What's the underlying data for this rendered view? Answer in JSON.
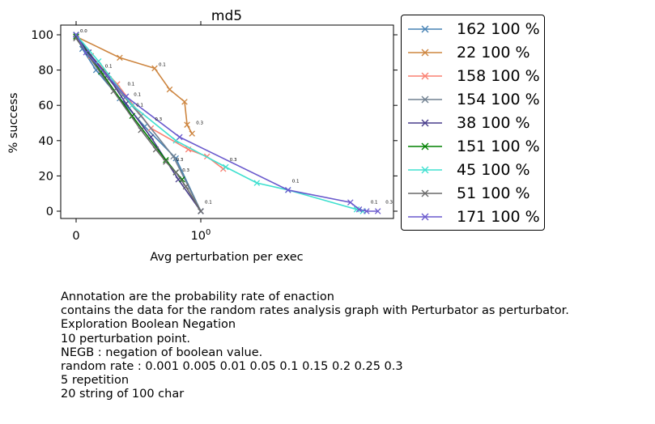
{
  "chart_data": {
    "type": "line",
    "title": "md5",
    "xlabel": "Avg perturbation per exec",
    "ylabel": "% success",
    "x_scale": "symlog",
    "ylim": [
      -5,
      105
    ],
    "x_tick_labels": [
      "0",
      "10^0"
    ],
    "y_tick_labels": [
      "0",
      "20",
      "40",
      "60",
      "80",
      "100"
    ],
    "legend_position": "outside right",
    "series": [
      {
        "name": "162 100 %",
        "color": "#4682b4",
        "x": [
          0,
          0.05,
          0.16,
          0.35,
          0.55,
          0.8,
          1.0
        ],
        "y": [
          100,
          92,
          80,
          64,
          48,
          30,
          0
        ]
      },
      {
        "name": "22 100 %",
        "color": "#cd853f",
        "x": [
          0,
          0.35,
          0.63,
          0.75,
          0.87,
          0.89,
          0.93
        ],
        "y": [
          99,
          87,
          81,
          69,
          62,
          49,
          44
        ]
      },
      {
        "name": "158 100 %",
        "color": "#fa8072",
        "x": [
          0,
          0.12,
          0.33,
          0.6,
          0.9,
          1.05,
          1.18
        ],
        "y": [
          100,
          88,
          72,
          47,
          35,
          31,
          24
        ]
      },
      {
        "name": "154 100 %",
        "color": "#708090",
        "x": [
          0,
          0.1,
          0.26,
          0.52,
          0.78,
          1.0
        ],
        "y": [
          100,
          90,
          75,
          54,
          31,
          0
        ]
      },
      {
        "name": "38 100 %",
        "color": "#483d8b",
        "x": [
          0,
          0.1,
          0.25,
          0.4,
          0.6,
          0.82,
          1.0
        ],
        "y": [
          100,
          90,
          77,
          61,
          42,
          18,
          0
        ]
      },
      {
        "name": "151 100 %",
        "color": "#008000",
        "x": [
          0,
          0.2,
          0.45,
          0.72,
          0.8,
          0.85
        ],
        "y": [
          99,
          79,
          54,
          29,
          22,
          18
        ]
      },
      {
        "name": "45 100 %",
        "color": "#40e0d0",
        "x": [
          0,
          0.18,
          0.45,
          0.8,
          1.2,
          1.45,
          1.7,
          2.25,
          2.3
        ],
        "y": [
          100,
          85,
          60,
          40,
          25,
          16,
          12,
          1,
          0
        ]
      },
      {
        "name": "51 100 %",
        "color": "#696969",
        "x": [
          0,
          0.3,
          0.52,
          0.64,
          0.72,
          0.8,
          0.88,
          1.0
        ],
        "y": [
          98,
          68,
          46,
          35,
          28,
          22,
          14,
          0
        ]
      },
      {
        "name": "171 100 %",
        "color": "#6a5acd",
        "x": [
          0,
          0.08,
          0.4,
          0.83,
          1.7,
          2.2,
          2.27,
          2.33,
          2.42
        ],
        "y": [
          100,
          90,
          65,
          42,
          12,
          5,
          1,
          0,
          0
        ]
      }
    ],
    "annotations": [
      {
        "x": 0,
        "y": 100,
        "text": "0.0"
      },
      {
        "x": 0.2,
        "y": 80,
        "text": "0.1"
      },
      {
        "x": 0.38,
        "y": 70,
        "text": "0.1"
      },
      {
        "x": 0.43,
        "y": 64,
        "text": "0.1"
      },
      {
        "x": 0.45,
        "y": 58,
        "text": "0.1"
      },
      {
        "x": 0.63,
        "y": 81,
        "text": "0.1"
      },
      {
        "x": 0.6,
        "y": 50,
        "text": "0.3"
      },
      {
        "x": 0.77,
        "y": 27,
        "text": "0.3"
      },
      {
        "x": 0.82,
        "y": 21,
        "text": "0.3"
      },
      {
        "x": 0.93,
        "y": 48,
        "text": "0.3"
      },
      {
        "x": 1.0,
        "y": 3,
        "text": "0.1"
      },
      {
        "x": 1.2,
        "y": 27,
        "text": "0.3"
      },
      {
        "x": 1.7,
        "y": 15,
        "text": "0.1"
      },
      {
        "x": 2.33,
        "y": 3,
        "text": "0.1"
      },
      {
        "x": 2.45,
        "y": 3,
        "text": "0.3"
      }
    ]
  },
  "caption_lines": [
    "Annotation are the probability rate of enaction",
    "contains the data for the random rates analysis graph with Perturbator as perturbator.",
    "Exploration Boolean Negation",
    "10 perturbation point.",
    "NEGB : negation of boolean value.",
    "random rate : 0.001 0.005 0.01 0.05 0.1 0.15 0.2 0.25 0.3",
    "5 repetition",
    "20 string of 100 char"
  ]
}
